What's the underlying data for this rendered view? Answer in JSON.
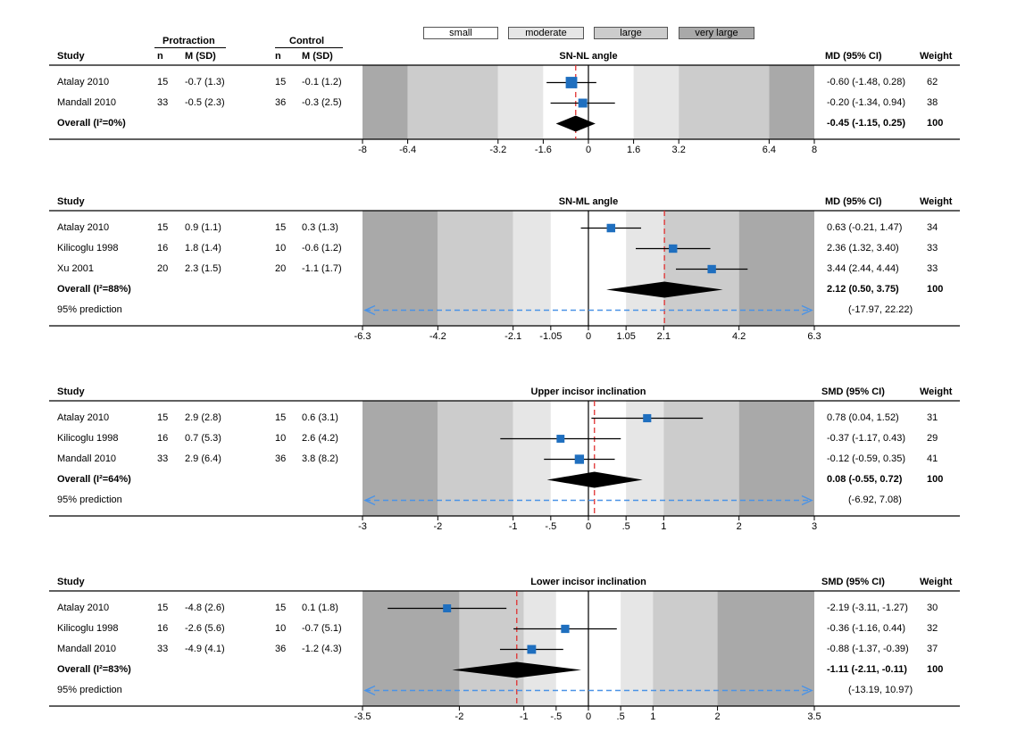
{
  "legend": {
    "small": {
      "label": "small",
      "color": "#ffffff"
    },
    "moderate": {
      "label": "moderate",
      "color": "#e6e6e6"
    },
    "large": {
      "label": "large",
      "color": "#cccccc"
    },
    "very_large": {
      "label": "very large",
      "color": "#a9a9a9"
    }
  },
  "group_headers": {
    "protraction": "Protraction",
    "control": "Control"
  },
  "colors": {
    "marker": "#1f6fbf",
    "pooled": "#000000",
    "pooled_ref": "#e03030",
    "prediction": "#4b93e6",
    "band_small": "#ffffff",
    "band_moderate": "#e6e6e6",
    "band_large": "#cccccc",
    "band_very_large": "#a9a9a9"
  },
  "chart_data": [
    {
      "type": "forest",
      "title": "SN-NL angle",
      "headers": {
        "study": "Study",
        "n1": "n",
        "msd1": "M (SD)",
        "n2": "n",
        "msd2": "M (SD)",
        "effect": "MD (95% CI)",
        "weight": "Weight"
      },
      "xlim": [
        -8,
        8
      ],
      "ticks": [
        "-8",
        "-6.4",
        "-3.2",
        "-1.6",
        "0",
        "1.6",
        "3.2",
        "6.4",
        "8"
      ],
      "bands": [
        1.6,
        3.2,
        6.4
      ],
      "studies": [
        {
          "name": "Atalay 2010",
          "n1": "15",
          "msd1": "-0.7 (1.3)",
          "n2": "15",
          "msd2": "-0.1 (1.2)",
          "est": -0.6,
          "lo": -1.48,
          "hi": 0.28,
          "ci_text": "-0.60 (-1.48, 0.28)",
          "weight": "62"
        },
        {
          "name": "Mandall 2010",
          "n1": "33",
          "msd1": "-0.5 (2.3)",
          "n2": "36",
          "msd2": "-0.3 (2.5)",
          "est": -0.2,
          "lo": -1.34,
          "hi": 0.94,
          "ci_text": "-0.20 (-1.34, 0.94)",
          "weight": "38"
        }
      ],
      "overall": {
        "label": "Overall (I²=0%)",
        "est": -0.45,
        "lo": -1.15,
        "hi": 0.25,
        "ci_text": "-0.45 (-1.15, 0.25)",
        "weight": "100"
      },
      "prediction": null
    },
    {
      "type": "forest",
      "title": "SN-ML angle",
      "headers": {
        "study": "Study",
        "effect": "MD (95% CI)",
        "weight": "Weight"
      },
      "xlim": [
        -6.3,
        6.3
      ],
      "ticks": [
        "-6.3",
        "-4.2",
        "-2.1",
        "-1.05",
        "0",
        "1.05",
        "2.1",
        "4.2",
        "6.3"
      ],
      "bands": [
        1.05,
        2.1,
        4.2
      ],
      "studies": [
        {
          "name": "Atalay 2010",
          "n1": "15",
          "msd1": "0.9 (1.1)",
          "n2": "15",
          "msd2": "0.3 (1.3)",
          "est": 0.63,
          "lo": -0.21,
          "hi": 1.47,
          "ci_text": "0.63 (-0.21, 1.47)",
          "weight": "34"
        },
        {
          "name": "Kilicoglu 1998",
          "n1": "16",
          "msd1": "1.8 (1.4)",
          "n2": "10",
          "msd2": "-0.6 (1.2)",
          "est": 2.36,
          "lo": 1.32,
          "hi": 3.4,
          "ci_text": "2.36 (1.32, 3.40)",
          "weight": "33"
        },
        {
          "name": "Xu 2001",
          "n1": "20",
          "msd1": "2.3 (1.5)",
          "n2": "20",
          "msd2": "-1.1 (1.7)",
          "est": 3.44,
          "lo": 2.44,
          "hi": 4.44,
          "ci_text": "3.44 (2.44, 4.44)",
          "weight": "33"
        }
      ],
      "overall": {
        "label": "Overall (I²=88%)",
        "est": 2.12,
        "lo": 0.5,
        "hi": 3.75,
        "ci_text": "2.12 (0.50, 3.75)",
        "weight": "100"
      },
      "prediction": {
        "label": "95% prediction",
        "lo": -17.97,
        "hi": 22.22,
        "ci_text": "(-17.97, 22.22)"
      }
    },
    {
      "type": "forest",
      "title": "Upper incisor inclination",
      "headers": {
        "study": "Study",
        "effect": "SMD (95% CI)",
        "weight": "Weight"
      },
      "xlim": [
        -3,
        3
      ],
      "ticks": [
        "-3",
        "-2",
        "-1",
        "-.5",
        "0",
        ".5",
        "1",
        "2",
        "3"
      ],
      "bands": [
        0.5,
        1,
        2
      ],
      "studies": [
        {
          "name": "Atalay 2010",
          "n1": "15",
          "msd1": "2.9 (2.8)",
          "n2": "15",
          "msd2": "0.6 (3.1)",
          "est": 0.78,
          "lo": 0.04,
          "hi": 1.52,
          "ci_text": "0.78 (0.04, 1.52)",
          "weight": "31"
        },
        {
          "name": "Kilicoglu 1998",
          "n1": "16",
          "msd1": "0.7 (5.3)",
          "n2": "10",
          "msd2": "2.6 (4.2)",
          "est": -0.37,
          "lo": -1.17,
          "hi": 0.43,
          "ci_text": "-0.37 (-1.17, 0.43)",
          "weight": "29"
        },
        {
          "name": "Mandall 2010",
          "n1": "33",
          "msd1": "2.9 (6.4)",
          "n2": "36",
          "msd2": "3.8 (8.2)",
          "est": -0.12,
          "lo": -0.59,
          "hi": 0.35,
          "ci_text": "-0.12 (-0.59, 0.35)",
          "weight": "41"
        }
      ],
      "overall": {
        "label": "Overall (I²=64%)",
        "est": 0.08,
        "lo": -0.55,
        "hi": 0.72,
        "ci_text": "0.08 (-0.55, 0.72)",
        "weight": "100"
      },
      "prediction": {
        "label": "95% prediction",
        "lo": -6.92,
        "hi": 7.08,
        "ci_text": "(-6.92, 7.08)"
      }
    },
    {
      "type": "forest",
      "title": "Lower incisor inclination",
      "headers": {
        "study": "Study",
        "effect": "SMD (95% CI)",
        "weight": "Weight"
      },
      "xlim": [
        -3.5,
        3.5
      ],
      "ticks": [
        "-3.5",
        "-2",
        "-1",
        "-.5",
        "0",
        ".5",
        "1",
        "2",
        "3.5"
      ],
      "bands": [
        0.5,
        1,
        2
      ],
      "studies": [
        {
          "name": "Atalay 2010",
          "n1": "15",
          "msd1": "-4.8 (2.6)",
          "n2": "15",
          "msd2": "0.1 (1.8)",
          "est": -2.19,
          "lo": -3.11,
          "hi": -1.27,
          "ci_text": "-2.19 (-3.11, -1.27)",
          "weight": "30"
        },
        {
          "name": "Kilicoglu 1998",
          "n1": "16",
          "msd1": "-2.6 (5.6)",
          "n2": "10",
          "msd2": "-0.7 (5.1)",
          "est": -0.36,
          "lo": -1.16,
          "hi": 0.44,
          "ci_text": "-0.36 (-1.16, 0.44)",
          "weight": "32"
        },
        {
          "name": "Mandall 2010",
          "n1": "33",
          "msd1": "-4.9 (4.1)",
          "n2": "36",
          "msd2": "-1.2 (4.3)",
          "est": -0.88,
          "lo": -1.37,
          "hi": -0.39,
          "ci_text": "-0.88 (-1.37, -0.39)",
          "weight": "37"
        }
      ],
      "overall": {
        "label": "Overall (I²=83%)",
        "est": -1.11,
        "lo": -2.11,
        "hi": -0.11,
        "ci_text": "-1.11 (-2.11, -0.11)",
        "weight": "100"
      },
      "prediction": {
        "label": "95% prediction",
        "lo": -13.19,
        "hi": 10.97,
        "ci_text": "(-13.19, 10.97)"
      }
    }
  ]
}
